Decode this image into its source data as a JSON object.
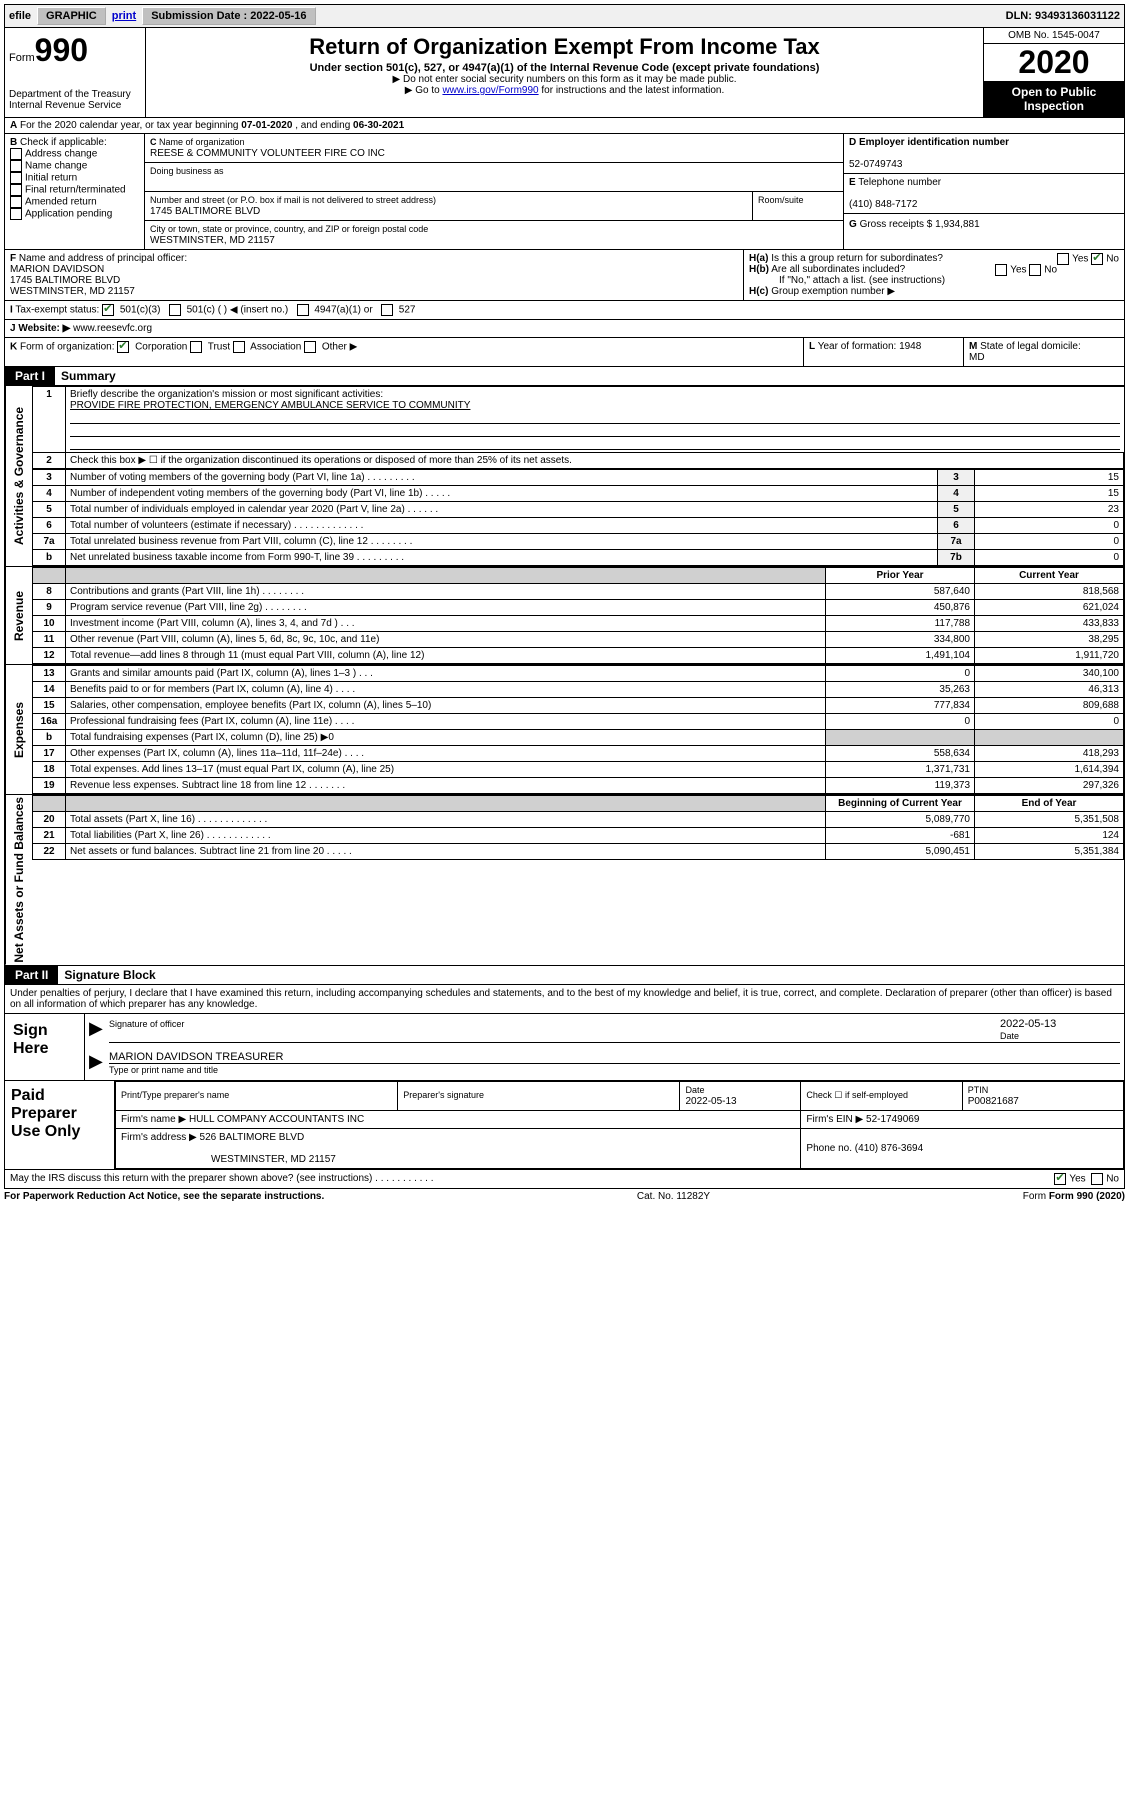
{
  "topbar": {
    "efile": "efile",
    "graphic": "GRAPHIC",
    "print": "print",
    "submission_label": "Submission Date : ",
    "submission_date": "2022-05-16",
    "dln_label": "DLN: ",
    "dln": "93493136031122"
  },
  "header": {
    "form_word": "Form",
    "form_no": "990",
    "dept": "Department of the Treasury\nInternal Revenue Service",
    "title": "Return of Organization Exempt From Income Tax",
    "sub": "Under section 501(c), 527, or 4947(a)(1) of the Internal Revenue Code (except private foundations)",
    "inst1": "▶ Do not enter social security numbers on this form as it may be made public.",
    "inst2_pre": "▶ Go to ",
    "inst2_link": "www.irs.gov/Form990",
    "inst2_post": " for instructions and the latest information.",
    "omb": "OMB No. 1545-0047",
    "year": "2020",
    "open": "Open to Public Inspection"
  },
  "A": {
    "text_pre": "For the 2020 calendar year, or tax year beginning ",
    "begin": "07-01-2020",
    "mid": " , and ending ",
    "end": "06-30-2021"
  },
  "B": {
    "title": "Check if applicable:",
    "items": [
      "Address change",
      "Name change",
      "Initial return",
      "Final return/terminated",
      "Amended return",
      "Application pending"
    ]
  },
  "C": {
    "name_lbl": "Name of organization",
    "name": "REESE & COMMUNITY VOLUNTEER FIRE CO INC",
    "dba_lbl": "Doing business as",
    "addr_lbl": "Number and street (or P.O. box if mail is not delivered to street address)",
    "room_lbl": "Room/suite",
    "addr": "1745 BALTIMORE BLVD",
    "city_lbl": "City or town, state or province, country, and ZIP or foreign postal code",
    "city": "WESTMINSTER, MD  21157"
  },
  "D": {
    "lbl": "Employer identification number",
    "val": "52-0749743"
  },
  "E": {
    "lbl": "Telephone number",
    "val": "(410) 848-7172"
  },
  "G": {
    "lbl": "Gross receipts $ ",
    "val": "1,934,881"
  },
  "F": {
    "lbl": "Name and address of principal officer:",
    "name": "MARION DAVIDSON",
    "addr1": "1745 BALTIMORE BLVD",
    "addr2": "WESTMINSTER, MD  21157"
  },
  "H": {
    "a_lbl": "Is this a group return for subordinates?",
    "a_yes": "Yes",
    "a_no": "No",
    "b_lbl": "Are all subordinates included?",
    "b_note": "If \"No,\" attach a list. (see instructions)",
    "c_lbl": "Group exemption number ▶"
  },
  "I": {
    "lbl": "Tax-exempt status:",
    "o1": "501(c)(3)",
    "o2": "501(c) (   ) ◀ (insert no.)",
    "o3": "4947(a)(1) or",
    "o4": "527"
  },
  "J": {
    "lbl": "Website: ▶",
    "val": "www.reesevfc.org"
  },
  "K": {
    "lbl": "Form of organization:",
    "opts": [
      "Corporation",
      "Trust",
      "Association",
      "Other ▶"
    ]
  },
  "L": {
    "lbl": "Year of formation: ",
    "val": "1948"
  },
  "M": {
    "lbl": "State of legal domicile:",
    "val": "MD"
  },
  "parts": {
    "p1": "Part I",
    "p1_title": "Summary",
    "p2": "Part II",
    "p2_title": "Signature Block"
  },
  "sideLabels": {
    "gov": "Activities & Governance",
    "rev": "Revenue",
    "exp": "Expenses",
    "net": "Net Assets or Fund Balances"
  },
  "summary": {
    "l1_lbl": "Briefly describe the organization's mission or most significant activities:",
    "l1_val": "PROVIDE FIRE PROTECTION, EMERGENCY AMBULANCE SERVICE TO COMMUNITY",
    "l2": "Check this box ▶ ☐  if the organization discontinued its operations or disposed of more than 25% of its net assets.",
    "rows_gov": [
      {
        "n": "3",
        "t": "Number of voting members of the governing body (Part VI, line 1a)  .  .  .  .  .  .  .  .  .",
        "r": "3",
        "v": "15"
      },
      {
        "n": "4",
        "t": "Number of independent voting members of the governing body (Part VI, line 1b)  .  .  .  .  .",
        "r": "4",
        "v": "15"
      },
      {
        "n": "5",
        "t": "Total number of individuals employed in calendar year 2020 (Part V, line 2a)  .  .  .  .  .  .",
        "r": "5",
        "v": "23"
      },
      {
        "n": "6",
        "t": "Total number of volunteers (estimate if necessary)  .  .  .  .  .  .  .  .  .  .  .  .  .",
        "r": "6",
        "v": "0"
      },
      {
        "n": "7a",
        "t": "Total unrelated business revenue from Part VIII, column (C), line 12  .  .  .  .  .  .  .  .",
        "r": "7a",
        "v": "0"
      },
      {
        "n": "b",
        "t": "Net unrelated business taxable income from Form 990-T, line 39  .  .  .  .  .  .  .  .  .",
        "r": "7b",
        "v": "0"
      }
    ],
    "col_prior": "Prior Year",
    "col_curr": "Current Year",
    "rows_rev": [
      {
        "n": "8",
        "t": "Contributions and grants (Part VIII, line 1h)  .  .  .  .  .  .  .  .",
        "p": "587,640",
        "c": "818,568"
      },
      {
        "n": "9",
        "t": "Program service revenue (Part VIII, line 2g)  .  .  .  .  .  .  .  .",
        "p": "450,876",
        "c": "621,024"
      },
      {
        "n": "10",
        "t": "Investment income (Part VIII, column (A), lines 3, 4, and 7d )  .  .  .",
        "p": "117,788",
        "c": "433,833"
      },
      {
        "n": "11",
        "t": "Other revenue (Part VIII, column (A), lines 5, 6d, 8c, 9c, 10c, and 11e)",
        "p": "334,800",
        "c": "38,295"
      },
      {
        "n": "12",
        "t": "Total revenue—add lines 8 through 11 (must equal Part VIII, column (A), line 12)",
        "p": "1,491,104",
        "c": "1,911,720"
      }
    ],
    "rows_exp": [
      {
        "n": "13",
        "t": "Grants and similar amounts paid (Part IX, column (A), lines 1–3 )  .  .  .",
        "p": "0",
        "c": "340,100"
      },
      {
        "n": "14",
        "t": "Benefits paid to or for members (Part IX, column (A), line 4)  .  .  .  .",
        "p": "35,263",
        "c": "46,313"
      },
      {
        "n": "15",
        "t": "Salaries, other compensation, employee benefits (Part IX, column (A), lines 5–10)",
        "p": "777,834",
        "c": "809,688"
      },
      {
        "n": "16a",
        "t": "Professional fundraising fees (Part IX, column (A), line 11e)  .  .  .  .",
        "p": "0",
        "c": "0"
      },
      {
        "n": "b",
        "t": "Total fundraising expenses (Part IX, column (D), line 25) ▶0",
        "p": "",
        "c": "",
        "gray": true
      },
      {
        "n": "17",
        "t": "Other expenses (Part IX, column (A), lines 11a–11d, 11f–24e)  .  .  .  .",
        "p": "558,634",
        "c": "418,293"
      },
      {
        "n": "18",
        "t": "Total expenses. Add lines 13–17 (must equal Part IX, column (A), line 25)",
        "p": "1,371,731",
        "c": "1,614,394"
      },
      {
        "n": "19",
        "t": "Revenue less expenses. Subtract line 18 from line 12  .  .  .  .  .  .  .",
        "p": "119,373",
        "c": "297,326"
      }
    ],
    "col_beg": "Beginning of Current Year",
    "col_end": "End of Year",
    "rows_net": [
      {
        "n": "20",
        "t": "Total assets (Part X, line 16)  .  .  .  .  .  .  .  .  .  .  .  .  .",
        "p": "5,089,770",
        "c": "5,351,508"
      },
      {
        "n": "21",
        "t": "Total liabilities (Part X, line 26)  .  .  .  .  .  .  .  .  .  .  .  .",
        "p": "-681",
        "c": "124"
      },
      {
        "n": "22",
        "t": "Net assets or fund balances. Subtract line 21 from line 20  .  .  .  .  .",
        "p": "5,090,451",
        "c": "5,351,384"
      }
    ]
  },
  "sig": {
    "decl": "Under penalties of perjury, I declare that I have examined this return, including accompanying schedules and statements, and to the best of my knowledge and belief, it is true, correct, and complete. Declaration of preparer (other than officer) is based on all information of which preparer has any knowledge.",
    "sign_here": "Sign Here",
    "sig_officer": "Signature of officer",
    "date_lbl": "Date",
    "date": "2022-05-13",
    "officer": "MARION DAVIDSON  TREASURER",
    "type_name": "Type or print name and title"
  },
  "prep": {
    "lbl": "Paid Preparer Use Only",
    "h_name": "Print/Type preparer's name",
    "h_sig": "Preparer's signature",
    "h_date": "Date",
    "date": "2022-05-13",
    "check_lbl": "Check ☐ if self-employed",
    "ptin_lbl": "PTIN",
    "ptin": "P00821687",
    "firm_name_lbl": "Firm's name    ▶",
    "firm_name": "HULL COMPANY ACCOUNTANTS INC",
    "firm_ein_lbl": "Firm's EIN ▶",
    "firm_ein": "52-1749069",
    "firm_addr_lbl": "Firm's address ▶",
    "firm_addr1": "526 BALTIMORE BLVD",
    "firm_addr2": "WESTMINSTER, MD  21157",
    "phone_lbl": "Phone no. ",
    "phone": "(410) 876-3694",
    "discuss": "May the IRS discuss this return with the preparer shown above? (see instructions)  .  .  .  .  .  .  .  .  .  .  .",
    "yes": "Yes",
    "no": "No"
  },
  "footer": {
    "pra": "For Paperwork Reduction Act Notice, see the separate instructions.",
    "cat": "Cat. No. 11282Y",
    "form": "Form 990 (2020)"
  }
}
